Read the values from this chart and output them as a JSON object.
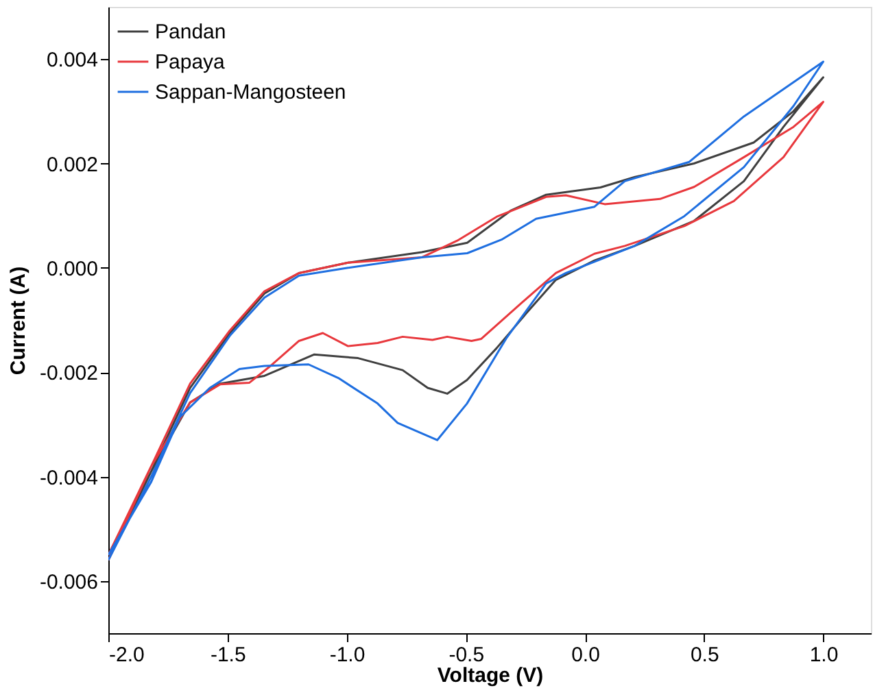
{
  "chart_data": {
    "type": "line",
    "xlabel": "Voltage (V)",
    "ylabel": "Current (A)",
    "xlim": [
      -2.0,
      1.2
    ],
    "ylim": [
      -0.007,
      0.005
    ],
    "xticks": [
      {
        "value": -2,
        "label": "-2.0"
      },
      {
        "value": -1.5,
        "label": "-1.5"
      },
      {
        "value": -1,
        "label": "-1.0"
      },
      {
        "value": -0.5,
        "label": "-0.5"
      },
      {
        "value": 0,
        "label": "0.0"
      },
      {
        "value": 0.5,
        "label": "0.5"
      },
      {
        "value": 1,
        "label": "1.0"
      }
    ],
    "yticks": [
      {
        "value": -0.006,
        "label": "-0.006"
      },
      {
        "value": -0.004,
        "label": "-0.004"
      },
      {
        "value": -0.002,
        "label": "-0.002"
      },
      {
        "value": 0,
        "label": "0.000"
      },
      {
        "value": 0.002,
        "label": "0.002"
      },
      {
        "value": 0.004,
        "label": "0.004"
      }
    ],
    "grid": false,
    "legend": "top left",
    "line_style": "solid",
    "marker": "none",
    "series": [
      {
        "name": "Pandan",
        "color": "#404040",
        "x": [
          -2.0,
          -1.82,
          -1.657,
          -1.49,
          -1.345,
          -1.2,
          -0.994,
          -0.685,
          -0.494,
          -0.31,
          -0.163,
          0.065,
          0.21,
          0.458,
          0.708,
          0.875,
          1.0,
          0.833,
          0.667,
          0.458,
          0.208,
          0.04,
          -0.122,
          -0.246,
          -0.371,
          -0.495,
          -0.578,
          -0.66,
          -0.765,
          -0.952,
          -1.137,
          -1.345,
          -1.532,
          -1.657,
          -1.82,
          -2.0
        ],
        "values": [
          -0.0056,
          -0.0039,
          -0.0023,
          -0.00125,
          -0.00049,
          -0.0001,
          0.0001,
          0.0003,
          0.00048,
          0.0011,
          0.0014,
          0.00154,
          0.00174,
          0.002,
          0.0024,
          0.003,
          0.00365,
          0.0027,
          0.00166,
          0.0009,
          0.00042,
          0.00014,
          -0.00023,
          -0.00087,
          -0.00154,
          -0.00215,
          -0.00241,
          -0.0023,
          -0.00196,
          -0.00173,
          -0.00166,
          -0.00207,
          -0.00222,
          -0.00258,
          -0.0039,
          -0.0055
        ]
      },
      {
        "name": "Papaya",
        "color": "#e8383d",
        "x": [
          -2.0,
          -1.82,
          -1.657,
          -1.49,
          -1.345,
          -1.2,
          -0.994,
          -0.685,
          -0.536,
          -0.37,
          -0.163,
          -0.08,
          0.083,
          0.315,
          0.458,
          0.667,
          0.875,
          1.0,
          0.833,
          0.625,
          0.417,
          0.167,
          0.04,
          -0.122,
          -0.268,
          -0.435,
          -0.476,
          -0.578,
          -0.64,
          -0.765,
          -0.87,
          -0.994,
          -1.1,
          -1.2,
          -1.325,
          -1.408,
          -1.53,
          -1.657,
          -1.82,
          -2.0
        ],
        "values": [
          -0.0056,
          -0.0038,
          -0.00222,
          -0.0012,
          -0.00045,
          -0.0001,
          0.0001,
          0.0002,
          0.00052,
          0.00098,
          0.00136,
          0.00139,
          0.00122,
          0.00132,
          0.00155,
          0.00212,
          0.0027,
          0.00318,
          0.00212,
          0.00128,
          0.0008,
          0.00042,
          0.00027,
          -0.0001,
          -0.00068,
          -0.00136,
          -0.0014,
          -0.00132,
          -0.00138,
          -0.00132,
          -0.00144,
          -0.0015,
          -0.00125,
          -0.0014,
          -0.0019,
          -0.0022,
          -0.00223,
          -0.00258,
          -0.0038,
          -0.0055
        ]
      },
      {
        "name": "Sappan-Mangosteen",
        "color": "#1f6fe0",
        "x": [
          -2.0,
          -1.82,
          -1.657,
          -1.49,
          -1.345,
          -1.2,
          -0.994,
          -0.685,
          -0.494,
          -0.35,
          -0.205,
          0.04,
          0.167,
          0.438,
          0.667,
          1.0,
          0.875,
          0.667,
          0.417,
          0.208,
          -0.08,
          -0.163,
          -0.33,
          -0.495,
          -0.62,
          -0.786,
          -0.87,
          -1.035,
          -1.16,
          -1.345,
          -1.45,
          -1.574,
          -1.7,
          -1.82,
          -2.0
        ],
        "values": [
          -0.0056,
          -0.004,
          -0.0024,
          -0.0013,
          -0.00057,
          -0.00015,
          0.0,
          0.0002,
          0.00028,
          0.00054,
          0.00094,
          0.00117,
          0.00166,
          0.00203,
          0.0029,
          0.00395,
          0.0031,
          0.00193,
          0.00099,
          0.00042,
          -0.0001,
          -0.0003,
          -0.00135,
          -0.0026,
          -0.0033,
          -0.00297,
          -0.0026,
          -0.00211,
          -0.00185,
          -0.00188,
          -0.00194,
          -0.0023,
          -0.00286,
          -0.0041,
          -0.0055
        ]
      }
    ]
  }
}
